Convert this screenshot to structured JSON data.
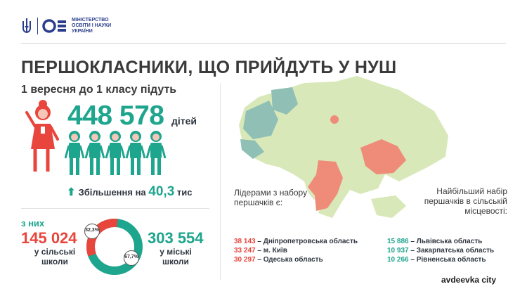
{
  "header": {
    "ministry_lines": [
      "МІНІСТЕРСТВО",
      "ОСВІТИ І НАУКИ",
      "УКРАЇНИ"
    ],
    "trident_icon": "trident-icon",
    "logo_icon": "mon-logo-icon"
  },
  "title": "ПЕРШОКЛАСНИКИ, ЩО ПРИЙДУТЬ У НУШ",
  "subtitle": "1 вересня до 1 класу підуть",
  "total": {
    "value": "448 578",
    "unit": "дітей"
  },
  "increase": {
    "label": "Збільшення на",
    "value": "40,3",
    "unit": "тис"
  },
  "of_them": "з них",
  "rural": {
    "value": "145 024",
    "label": "у сільські школи",
    "percent": "32,3",
    "color": "#e8453c"
  },
  "urban": {
    "value": "303 554",
    "label": "у міські школи",
    "percent": "67,7",
    "color": "#1ea58d"
  },
  "percent_sign": "%",
  "leaders": {
    "heading": "Лідерами з набору першачків є:",
    "items": [
      {
        "num": "38 143",
        "name": "Дніпропетровська область"
      },
      {
        "num": "33 247",
        "name": "м. Київ"
      },
      {
        "num": "30 297",
        "name": "Одеська область"
      }
    ]
  },
  "rural_leaders": {
    "heading": "Найбільший набір першачків в сільській місцевості:",
    "items": [
      {
        "num": "15 886",
        "name": "Львівська область"
      },
      {
        "num": "10 937",
        "name": "Закарпатська область"
      },
      {
        "num": "10 266",
        "name": "Рівненська область"
      }
    ]
  },
  "watermark": "avdeevka city",
  "colors": {
    "accent_green": "#1ea58d",
    "accent_red": "#e8453c",
    "map_base": "#d8e8b8",
    "map_rural": "#8fbfb5",
    "map_leader": "#ef8c79",
    "brand_blue": "#2b3e8c"
  }
}
